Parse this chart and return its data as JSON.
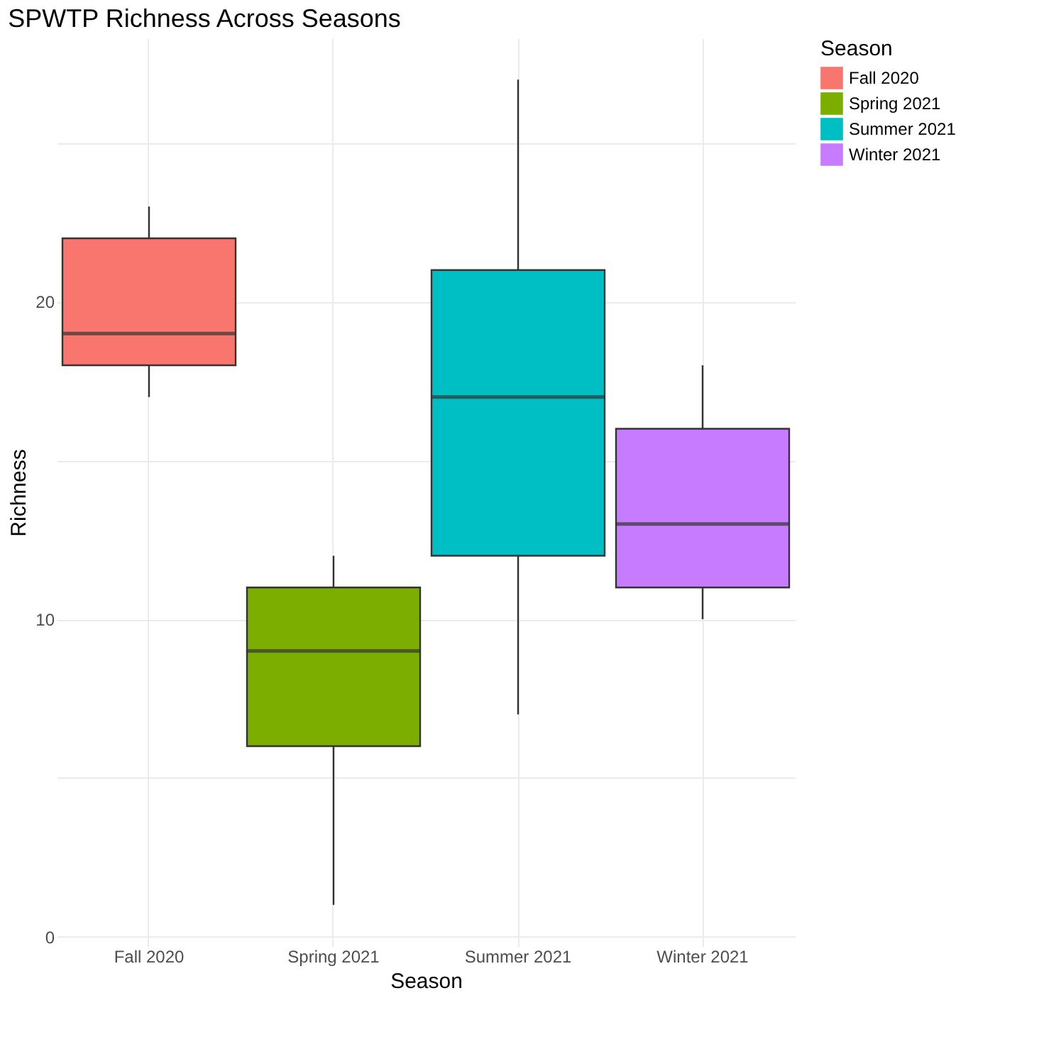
{
  "chart_data": {
    "type": "box",
    "title": "SPWTP Richness Across Seasons",
    "xlabel": "Season",
    "ylabel": "Richness",
    "legend_title": "Season",
    "categories": [
      "Fall 2020",
      "Spring 2021",
      "Summer 2021",
      "Winter 2021"
    ],
    "series": [
      {
        "name": "Fall 2020",
        "color": "#f8766d",
        "boxes": [
          {
            "low": 17,
            "q1": 18,
            "median": 19,
            "q3": 22,
            "high": 23
          },
          null,
          null,
          null
        ]
      },
      {
        "name": "Spring 2021",
        "color": "#7cae00",
        "boxes": [
          null,
          {
            "low": 1,
            "q1": 6,
            "median": 9,
            "q3": 11,
            "high": 12
          },
          null,
          null
        ]
      },
      {
        "name": "Summer 2021",
        "color": "#00bfc4",
        "boxes": [
          null,
          null,
          {
            "low": 7,
            "q1": 12,
            "median": 17,
            "q3": 21,
            "high": 27
          },
          null
        ]
      },
      {
        "name": "Winter 2021",
        "color": "#c77cff",
        "boxes": [
          null,
          null,
          null,
          {
            "low": 10,
            "q1": 11,
            "median": 13,
            "q3": 16,
            "high": 18
          }
        ]
      }
    ],
    "ylim": [
      -0.3,
      28.3
    ],
    "yticks": [
      0,
      {
        "value": 5,
        "label": null
      },
      10,
      {
        "value": 15,
        "label": null
      },
      20,
      {
        "value": 25,
        "label": null
      }
    ],
    "grid": true,
    "legend": "right"
  }
}
